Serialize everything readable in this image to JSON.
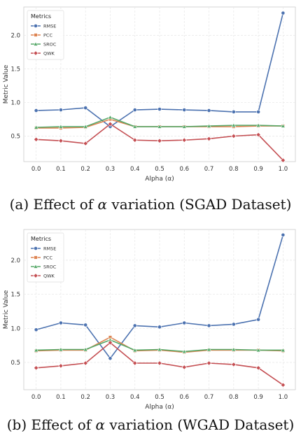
{
  "chart_data": [
    {
      "type": "line",
      "title": "",
      "caption": {
        "prefix": "(a) Effect of ",
        "symbol": "α",
        "suffix": " variation (SGAD Dataset)"
      },
      "xlabel": "Alpha (α)",
      "ylabel": "Metric Value",
      "x": [
        0.0,
        0.1,
        0.2,
        0.3,
        0.4,
        0.5,
        0.6,
        0.7,
        0.8,
        0.9,
        1.0
      ],
      "x_ticks": [
        "0.0",
        "0.1",
        "0.2",
        "0.3",
        "0.4",
        "0.5",
        "0.6",
        "0.7",
        "0.8",
        "0.9",
        "1.0"
      ],
      "ylim": [
        0.12,
        2.42
      ],
      "y_ticks": [
        0.5,
        1.0,
        1.5,
        2.0
      ],
      "y_tick_labels": [
        "0.5",
        "1.0",
        "1.5",
        "2.0"
      ],
      "grid": true,
      "legend": {
        "title": "Metrics",
        "position": "top-left"
      },
      "series": [
        {
          "name": "RMSE",
          "color": "#4c72b0",
          "marker": "circle",
          "values": [
            0.88,
            0.89,
            0.92,
            0.64,
            0.89,
            0.9,
            0.89,
            0.88,
            0.86,
            0.86,
            2.33
          ]
        },
        {
          "name": "PCC",
          "color": "#dd8452",
          "marker": "square",
          "values": [
            0.62,
            0.62,
            0.63,
            0.75,
            0.64,
            0.64,
            0.64,
            0.64,
            0.64,
            0.65,
            0.65
          ]
        },
        {
          "name": "SROC",
          "color": "#55a868",
          "marker": "triangle",
          "values": [
            0.63,
            0.64,
            0.64,
            0.78,
            0.64,
            0.64,
            0.64,
            0.65,
            0.66,
            0.66,
            0.65
          ]
        },
        {
          "name": "QWK",
          "color": "#c44e52",
          "marker": "diamond",
          "values": [
            0.45,
            0.43,
            0.39,
            0.68,
            0.44,
            0.43,
            0.44,
            0.46,
            0.5,
            0.52,
            0.14
          ]
        }
      ]
    },
    {
      "type": "line",
      "title": "",
      "caption": {
        "prefix": "(b) Effect of ",
        "symbol": "α",
        "suffix": " variation (WGAD Dataset)"
      },
      "xlabel": "Alpha (α)",
      "ylabel": "Metric Value",
      "x": [
        0.0,
        0.1,
        0.2,
        0.3,
        0.4,
        0.5,
        0.6,
        0.7,
        0.8,
        0.9,
        1.0
      ],
      "x_ticks": [
        "0.0",
        "0.1",
        "0.2",
        "0.3",
        "0.4",
        "0.5",
        "0.6",
        "0.7",
        "0.8",
        "0.9",
        "1.0"
      ],
      "ylim": [
        0.1,
        2.45
      ],
      "y_ticks": [
        0.5,
        1.0,
        1.5,
        2.0
      ],
      "y_tick_labels": [
        "0.5",
        "1.0",
        "1.5",
        "2.0"
      ],
      "grid": true,
      "legend": {
        "title": "Metrics",
        "position": "top-left"
      },
      "series": [
        {
          "name": "RMSE",
          "color": "#4c72b0",
          "marker": "circle",
          "values": [
            0.98,
            1.08,
            1.05,
            0.56,
            1.04,
            1.02,
            1.08,
            1.04,
            1.06,
            1.13,
            2.37
          ]
        },
        {
          "name": "PCC",
          "color": "#dd8452",
          "marker": "square",
          "values": [
            0.67,
            0.68,
            0.68,
            0.87,
            0.67,
            0.68,
            0.65,
            0.68,
            0.68,
            0.68,
            0.67
          ]
        },
        {
          "name": "SROC",
          "color": "#55a868",
          "marker": "triangle",
          "values": [
            0.68,
            0.69,
            0.69,
            0.83,
            0.68,
            0.69,
            0.66,
            0.69,
            0.69,
            0.68,
            0.68
          ]
        },
        {
          "name": "QWK",
          "color": "#c44e52",
          "marker": "diamond",
          "values": [
            0.42,
            0.45,
            0.49,
            0.79,
            0.49,
            0.49,
            0.43,
            0.49,
            0.47,
            0.42,
            0.17
          ]
        }
      ]
    }
  ]
}
